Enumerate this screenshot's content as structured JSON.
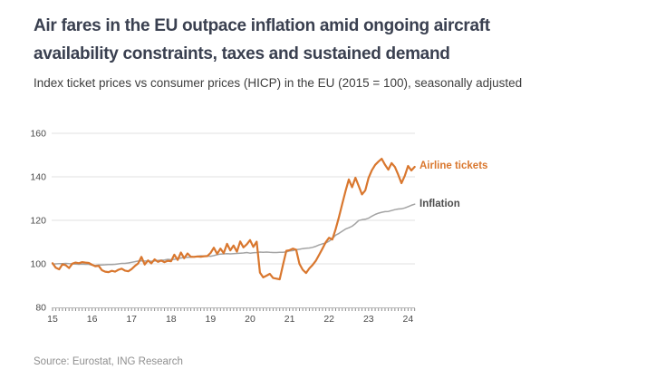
{
  "header": {
    "title_lines": [
      "Air fares in the EU outpace inflation amid ongoing aircraft",
      "availability constraints, taxes and sustained demand"
    ],
    "subtitle": "Index ticket prices vs consumer prices (HICP) in the EU (2015 = 100), seasonally adjusted",
    "title_color": "#3a4050"
  },
  "footer": {
    "source": "Source: Eurostat, ING Research"
  },
  "chart_data": {
    "type": "line",
    "title": "Air fares in the EU outpace inflation amid ongoing aircraft availability constraints, taxes and sustained demand",
    "subtitle": "Index ticket prices vs consumer prices (HICP) in the EU (2015 = 100), seasonally adjusted",
    "x_unit": "month",
    "x_start": "2015-01",
    "x_end": "2024-03",
    "x_tick_labels": [
      "15",
      "16",
      "17",
      "18",
      "19",
      "20",
      "21",
      "22",
      "23",
      "24"
    ],
    "y_ticks": [
      80,
      100,
      120,
      140,
      160
    ],
    "ylim": [
      80,
      160
    ],
    "grid": "horizontal-only",
    "legend_position": "right-of-line-ends",
    "series": [
      {
        "name": "Airline tickets",
        "color": "#d9772e",
        "values": [
          100.3,
          98.2,
          97.5,
          99.8,
          99.4,
          98.1,
          100.1,
          100.6,
          100.3,
          100.8,
          100.6,
          100.4,
          99.6,
          98.9,
          99.1,
          97.1,
          96.4,
          96.2,
          96.8,
          96.4,
          97.3,
          97.8,
          96.9,
          96.6,
          97.6,
          99.0,
          100.2,
          103.2,
          99.7,
          101.6,
          100.2,
          102.1,
          100.9,
          101.5,
          100.8,
          101.4,
          101.2,
          104.2,
          101.8,
          105.2,
          102.6,
          104.8,
          103.3,
          103.2,
          103.4,
          103.3,
          103.5,
          103.6,
          105.0,
          107.4,
          104.6,
          107.0,
          104.9,
          109.2,
          106.2,
          108.4,
          105.6,
          110.3,
          107.6,
          109.0,
          110.9,
          107.8,
          110.2,
          96.0,
          93.8,
          94.6,
          95.4,
          93.5,
          93.2,
          92.9,
          99.5,
          106.0,
          106.3,
          107.0,
          106.5,
          100.0,
          97.3,
          95.8,
          97.9,
          99.5,
          101.5,
          104.2,
          107.0,
          110.0,
          112.0,
          111.2,
          116.0,
          121.5,
          127.5,
          133.5,
          138.8,
          135.2,
          139.6,
          135.8,
          131.9,
          133.8,
          139.5,
          143.0,
          145.5,
          147.0,
          148.3,
          145.5,
          143.3,
          146.3,
          144.5,
          141.0,
          137.1,
          140.5,
          145.0,
          142.9,
          144.6
        ]
      },
      {
        "name": "Inflation",
        "color": "#a3a3a3",
        "label_color": "#4d4d4d",
        "values": [
          99.9,
          100.0,
          100.1,
          100.1,
          100.2,
          100.1,
          100.0,
          99.9,
          99.8,
          99.9,
          99.8,
          99.8,
          99.4,
          99.3,
          99.5,
          99.5,
          99.6,
          99.7,
          99.7,
          99.8,
          100.0,
          100.2,
          100.2,
          100.4,
          100.7,
          101.0,
          101.3,
          101.4,
          101.3,
          101.3,
          101.2,
          101.3,
          101.6,
          101.7,
          101.8,
          102.1,
          101.9,
          102.1,
          102.4,
          102.7,
          102.9,
          103.0,
          103.1,
          103.3,
          103.5,
          103.7,
          103.6,
          103.6,
          103.5,
          103.8,
          104.2,
          104.5,
          104.6,
          104.7,
          104.6,
          104.7,
          104.8,
          104.9,
          105.0,
          105.2,
          104.9,
          105.1,
          105.2,
          105.4,
          105.3,
          105.4,
          105.3,
          105.2,
          105.2,
          105.3,
          105.3,
          105.5,
          105.9,
          106.1,
          106.5,
          106.7,
          107.0,
          107.2,
          107.3,
          107.6,
          108.1,
          108.7,
          109.2,
          109.6,
          110.4,
          111.5,
          113.2,
          114.0,
          115.0,
          116.0,
          116.6,
          117.3,
          118.5,
          119.9,
          120.3,
          120.5,
          121.0,
          121.9,
          122.7,
          123.3,
          123.7,
          124.0,
          124.1,
          124.5,
          124.9,
          125.2,
          125.3,
          125.7,
          126.3,
          126.9,
          127.4
        ]
      }
    ]
  }
}
